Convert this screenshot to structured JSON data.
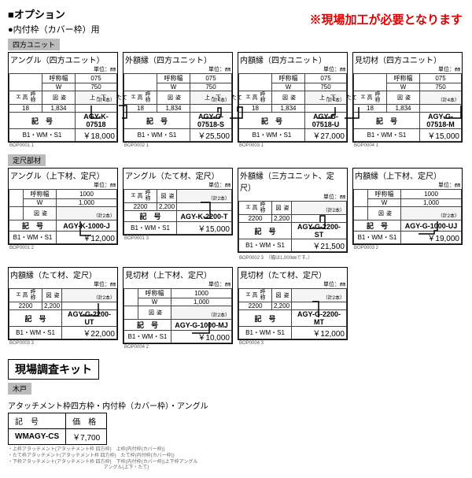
{
  "header": {
    "title": "■オプション",
    "subtitle": "●内付枠（カバー枠）用",
    "notice": "※現場加工が必要となります"
  },
  "group_labels": {
    "a": "四方ユニット",
    "b": "定尺部材",
    "c": "木戸"
  },
  "width_labels": {
    "head": "呼称幅",
    "w": "W"
  },
  "height_labels": {
    "head": "呼称高",
    "h": "H"
  },
  "unit": "単位：㎜",
  "fig_label": "姿　図",
  "count_label": "（計4本）",
  "count_label2": "（計2本）",
  "row1": [
    {
      "title": "アングル（四方ユニット）",
      "w_head": "075",
      "w_val": "750",
      "h_head": "18",
      "h_val": "1,834",
      "model_label": "記　号",
      "model": "AGY-K-07518",
      "price_code": "B1・WM・S1",
      "price": "￥18,000",
      "code": "BOP0001 1"
    },
    {
      "title": "外額縁（四方ユニット）",
      "w_head": "075",
      "w_val": "750",
      "h_head": "18",
      "h_val": "1,834",
      "model_label": "記　号",
      "model": "AGY-G-07518-S",
      "price_code": "B1・WM・S1",
      "price": "￥25,500",
      "code": "BOP0002 1"
    },
    {
      "title": "内額縁（四方ユニット）",
      "w_head": "075",
      "w_val": "750",
      "h_head": "18",
      "h_val": "1,834",
      "model_label": "記　号",
      "model": "AGY-G-07518-U",
      "price_code": "B1・WM・S1",
      "price": "￥27,000",
      "code": "BOP0003 1"
    },
    {
      "title": "見切材（四方ユニット）",
      "w_head": "075",
      "w_val": "750",
      "h_head": "18",
      "h_val": "1,834",
      "model_label": "記　号",
      "model": "AGY-G-07518-M",
      "price_code": "B1・WM・S1",
      "price": "￥15,000",
      "code": "BOP0004 1"
    }
  ],
  "row2": [
    {
      "title": "アングル（上下材、定尺）",
      "w_head": "1000",
      "w_val": "1,000",
      "model_label": "記　号",
      "model": "AGY-K-1000-J",
      "price_code": "B1・WM・S1",
      "price": "￥12,000",
      "code": "BOP0001 2"
    },
    {
      "title": "アングル（たて材、定尺）",
      "h_head": "2200",
      "h_val": "2,200",
      "model_label": "記　号",
      "model": "AGY-K-2200-T",
      "price_code": "B1・WM・S1",
      "price": "￥15,000",
      "code": "BOP0001 3"
    },
    {
      "title": "外額縁（三方ユニット、定尺）",
      "h_head": "2200",
      "h_val": "2,200",
      "model_label": "記　号",
      "model": "AGY-G-2200-ST",
      "price_code": "B1・WM・S1",
      "price": "￥21,500",
      "code": "BOP0002 3",
      "extra_note": "（幅は1,000㎜です。）"
    },
    {
      "title": "内額縁（上下材、定尺）",
      "w_head": "1000",
      "w_val": "1,000",
      "model_label": "記　号",
      "model": "AGY-G-1000-UJ",
      "price_code": "B1・WM・S1",
      "price": "￥19,000",
      "code": "BOP0003 2"
    }
  ],
  "row3": [
    {
      "title": "内額縁（たて材、定尺）",
      "h_head": "2200",
      "h_val": "2,200",
      "model_label": "記　号",
      "model": "AGY-G-2200-UT",
      "price_code": "B1・WM・S1",
      "price": "￥22,000",
      "code": "BOP0003 3"
    },
    {
      "title": "見切材（上下材、定尺）",
      "w_head": "1000",
      "w_val": "1,000",
      "model_label": "記　号",
      "model": "AGY-G-1000-MJ",
      "price_code": "B1・WM・S1",
      "price": "￥10,000",
      "code": "BOP0004 2"
    },
    {
      "title": "見切材（たて材、定尺）",
      "h_head": "2200",
      "h_val": "2,200",
      "model_label": "記　号",
      "model": "AGY-G-2200-MT",
      "price_code": "B1・WM・S1",
      "price": "￥12,000",
      "code": "BOP0004 3"
    }
  ],
  "kit": {
    "header": "現場調査キット",
    "subtitle": "アタッチメント枠四方枠・内付枠（カバー枠）・アングル",
    "model_label": "記　号",
    "price_label": "価　格",
    "model": "WMAGY-CS",
    "price": "￥7,700",
    "notes": [
      "・上枠アタッチメント(アタッチメント枠 四方枠)　上枠(内付枠(カバー枠))",
      "・たて枠アタッチメント(アタッチメント枠 四方枠)　たて枠(内付枠(カバー枠))",
      "・下枠アタッチメント(アタッチメント枠 四方枠)　下枠(内付枠(カバー枠))上下枠アングル",
      "　　　　　　　　　　　　　　　　　　　　 アングル(上下・たて)"
    ]
  }
}
